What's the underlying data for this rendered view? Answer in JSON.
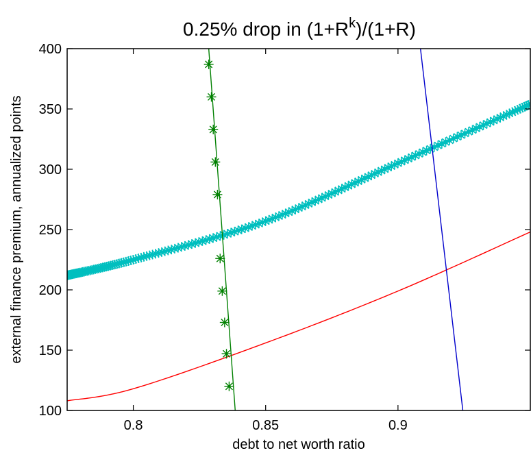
{
  "chart_data": {
    "type": "line",
    "title": {
      "main": "0.25% drop in (1+R",
      "superscript": "k",
      "tail": ")/(1+R)"
    },
    "xlabel": "debt to net worth ratio",
    "ylabel": "external finance premium, annualized points",
    "xlim": [
      0.775,
      0.95
    ],
    "ylim": [
      100,
      400
    ],
    "xticks": [
      0.8,
      0.85,
      0.9
    ],
    "xtick_labels": [
      "0.8",
      "0.85",
      "0.9"
    ],
    "yticks": [
      100,
      150,
      200,
      250,
      300,
      350,
      400
    ],
    "ytick_labels": [
      "100",
      "150",
      "200",
      "250",
      "300",
      "350",
      "400"
    ],
    "grid": false,
    "series": [
      {
        "color": "#00bfbf",
        "style": "line-with-star-markers-thick",
        "points": [
          [
            0.775,
            212
          ],
          [
            0.8,
            225
          ],
          [
            0.85,
            257
          ],
          [
            0.9,
            305
          ],
          [
            0.95,
            354
          ]
        ]
      },
      {
        "color": "#ff0000",
        "style": "line",
        "points": [
          [
            0.775,
            108
          ],
          [
            0.8,
            118
          ],
          [
            0.85,
            156
          ],
          [
            0.9,
            199
          ],
          [
            0.95,
            248
          ]
        ]
      },
      {
        "color": "#008000",
        "style": "line-with-star-markers",
        "points": [
          [
            0.8285,
            400
          ],
          [
            0.8385,
            100
          ]
        ],
        "markers_x": [
          0.8285,
          0.8295,
          0.8302,
          0.831,
          0.8318,
          0.8328,
          0.8336,
          0.8345,
          0.8352,
          0.8362
        ],
        "markers_y": [
          387,
          360,
          333,
          306,
          279,
          226,
          199,
          173,
          147,
          120
        ]
      },
      {
        "color": "#0000cc",
        "style": "line",
        "points": [
          [
            0.9085,
            400
          ],
          [
            0.9245,
            100
          ]
        ]
      }
    ]
  }
}
